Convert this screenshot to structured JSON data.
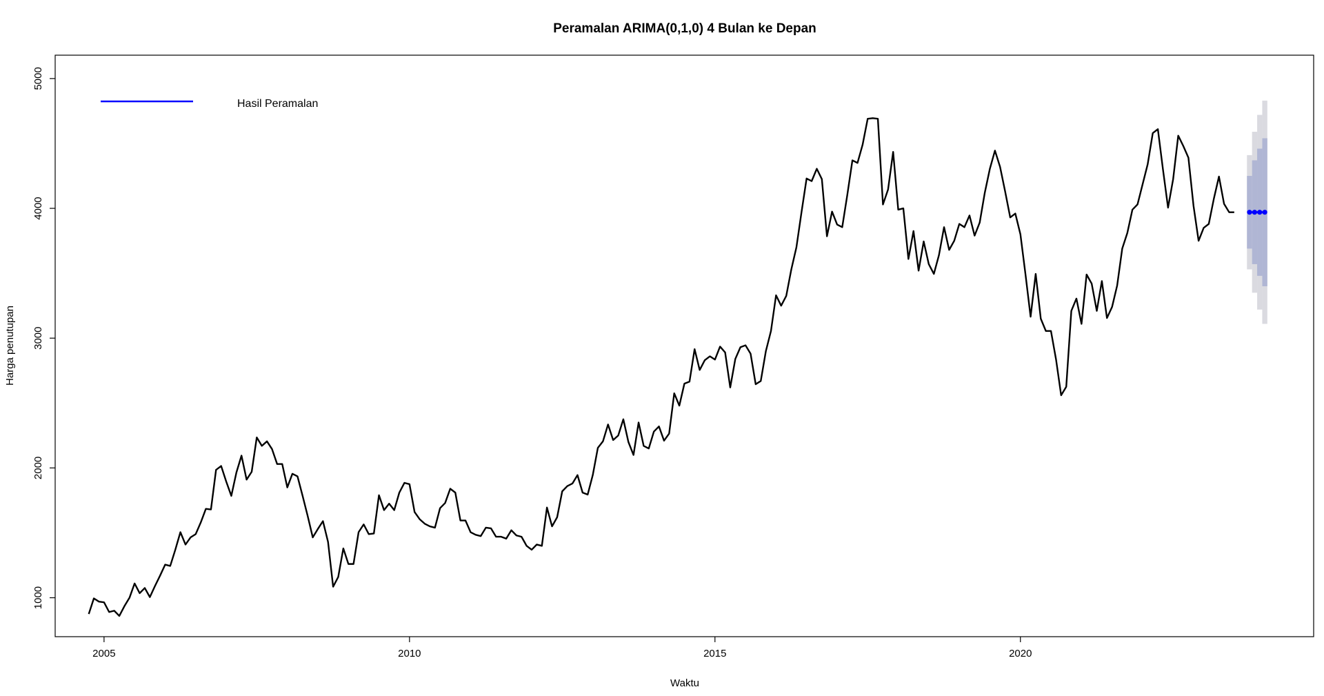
{
  "chart_data": {
    "type": "line",
    "title": "Peramalan ARIMA(0,1,0) 4 Bulan ke Depan",
    "xlabel": "Waktu",
    "ylabel": "Harga penutupan",
    "xlim": [
      2004.2,
      2024.8
    ],
    "ylim": [
      700,
      5180
    ],
    "x_ticks": [
      2005,
      2010,
      2015,
      2020
    ],
    "y_ticks": [
      1000,
      2000,
      3000,
      4000,
      5000
    ],
    "legend": {
      "placement": "top-left",
      "entries": [
        {
          "label": "Hasil Peramalan",
          "color": "#0000ff"
        }
      ]
    },
    "colors": {
      "history": "#000000",
      "forecast": "#0000ff",
      "pi80": "#b0b6d4",
      "pi95": "#dadae0"
    },
    "series": [
      {
        "kind": "history",
        "start": 2004.75,
        "step": 0.0833333,
        "values": [
          875,
          995,
          970,
          965,
          890,
          900,
          860,
          935,
          1000,
          1110,
          1035,
          1075,
          1005,
          1090,
          1170,
          1255,
          1245,
          1370,
          1505,
          1410,
          1465,
          1490,
          1580,
          1685,
          1680,
          1985,
          2015,
          1895,
          1785,
          1965,
          2095,
          1910,
          1970,
          2235,
          2170,
          2205,
          2145,
          2030,
          2030,
          1850,
          1955,
          1935,
          1785,
          1630,
          1465,
          1530,
          1590,
          1430,
          1085,
          1160,
          1380,
          1260,
          1260,
          1505,
          1565,
          1490,
          1495,
          1790,
          1675,
          1725,
          1675,
          1810,
          1885,
          1875,
          1660,
          1605,
          1570,
          1550,
          1540,
          1690,
          1730,
          1840,
          1810,
          1595,
          1595,
          1505,
          1485,
          1475,
          1540,
          1535,
          1470,
          1470,
          1455,
          1520,
          1480,
          1470,
          1400,
          1370,
          1410,
          1400,
          1695,
          1550,
          1620,
          1820,
          1860,
          1880,
          1945,
          1810,
          1795,
          1945,
          2155,
          2205,
          2335,
          2215,
          2250,
          2375,
          2200,
          2100,
          2350,
          2170,
          2150,
          2280,
          2320,
          2210,
          2265,
          2575,
          2480,
          2650,
          2665,
          2915,
          2755,
          2830,
          2860,
          2835,
          2935,
          2890,
          2620,
          2840,
          2930,
          2945,
          2880,
          2645,
          2670,
          2900,
          3055,
          3330,
          3250,
          3325,
          3530,
          3700,
          3970,
          4230,
          4210,
          4305,
          4225,
          3785,
          3975,
          3875,
          3855,
          4105,
          4370,
          4350,
          4490,
          4690,
          4695,
          4690,
          4030,
          4145,
          4435,
          3990,
          4000,
          3610,
          3825,
          3520,
          3745,
          3570,
          3495,
          3640,
          3855,
          3680,
          3750,
          3880,
          3855,
          3945,
          3790,
          3890,
          4120,
          4305,
          4445,
          4320,
          4130,
          3930,
          3960,
          3800,
          3490,
          3165,
          3495,
          3150,
          3055,
          3055,
          2835,
          2560,
          2625,
          3210,
          3305,
          3110,
          3490,
          3420,
          3210,
          3440,
          3155,
          3240,
          3405,
          3690,
          3810,
          3990,
          4030,
          4185,
          4340,
          4580,
          4610,
          4300,
          4005,
          4225,
          4560,
          4480,
          4390,
          4020,
          3750,
          3850,
          3880,
          4075,
          4245,
          4035,
          3970,
          3970
        ]
      },
      {
        "kind": "forecast",
        "name": "Hasil Peramalan",
        "x": [
          2023.75,
          2023.8333,
          2023.9167,
          2024.0
        ],
        "values": [
          3970,
          3970,
          3970,
          3970
        ],
        "lo80": [
          3690,
          3570,
          3480,
          3400
        ],
        "hi80": [
          4250,
          4370,
          4460,
          4540
        ],
        "lo95": [
          3530,
          3350,
          3220,
          3110
        ],
        "hi95": [
          4410,
          4590,
          4720,
          4830
        ]
      }
    ]
  }
}
